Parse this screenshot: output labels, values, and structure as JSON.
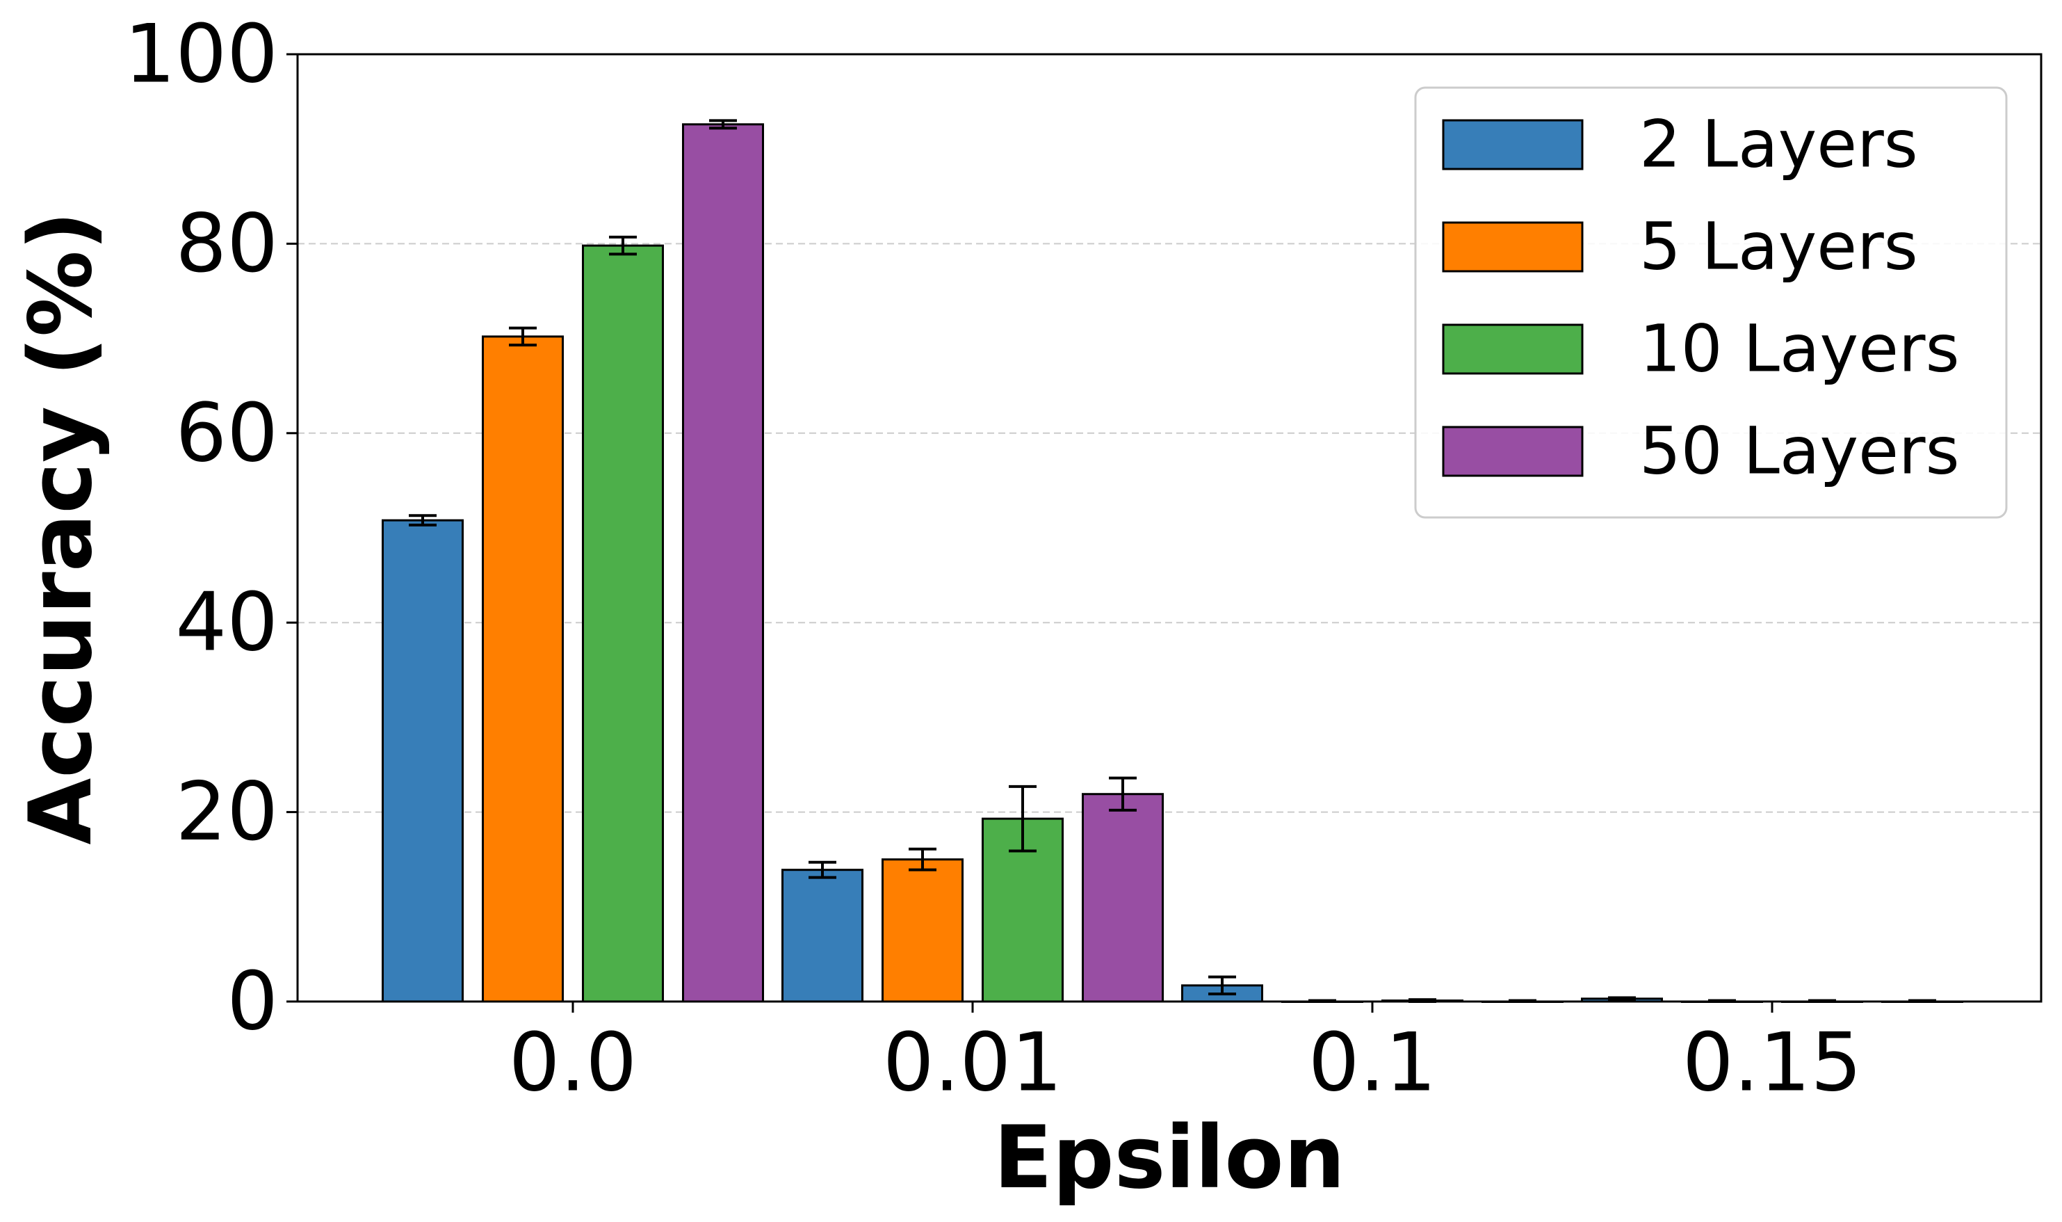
{
  "chart_data": {
    "type": "bar",
    "xlabel": "Epsilon",
    "ylabel": "Accuracy (%)",
    "categories": [
      "0.0",
      "0.01",
      "0.1",
      "0.15"
    ],
    "ylim": [
      0,
      100
    ],
    "yticks": [
      0,
      20,
      40,
      60,
      80,
      100
    ],
    "grid": "horizontal dashed",
    "legend_position": "top-right",
    "series": [
      {
        "name": "2 Layers",
        "color": "#377eb8",
        "values": [
          50.8,
          13.9,
          1.7,
          0.3
        ],
        "errors": [
          0.5,
          0.8,
          0.9,
          0.1
        ]
      },
      {
        "name": "5 Layers",
        "color": "#ff7f00",
        "values": [
          70.2,
          15.0,
          0.0,
          0.0
        ],
        "errors": [
          0.9,
          1.1,
          0.1,
          0.1
        ]
      },
      {
        "name": "10 Layers",
        "color": "#4daf4a",
        "values": [
          79.8,
          19.3,
          0.1,
          0.0
        ],
        "errors": [
          0.9,
          3.4,
          0.1,
          0.1
        ]
      },
      {
        "name": "50 Layers",
        "color": "#984ea3",
        "values": [
          92.6,
          21.9,
          0.0,
          0.0
        ],
        "errors": [
          0.4,
          1.7,
          0.1,
          0.1
        ]
      }
    ]
  }
}
